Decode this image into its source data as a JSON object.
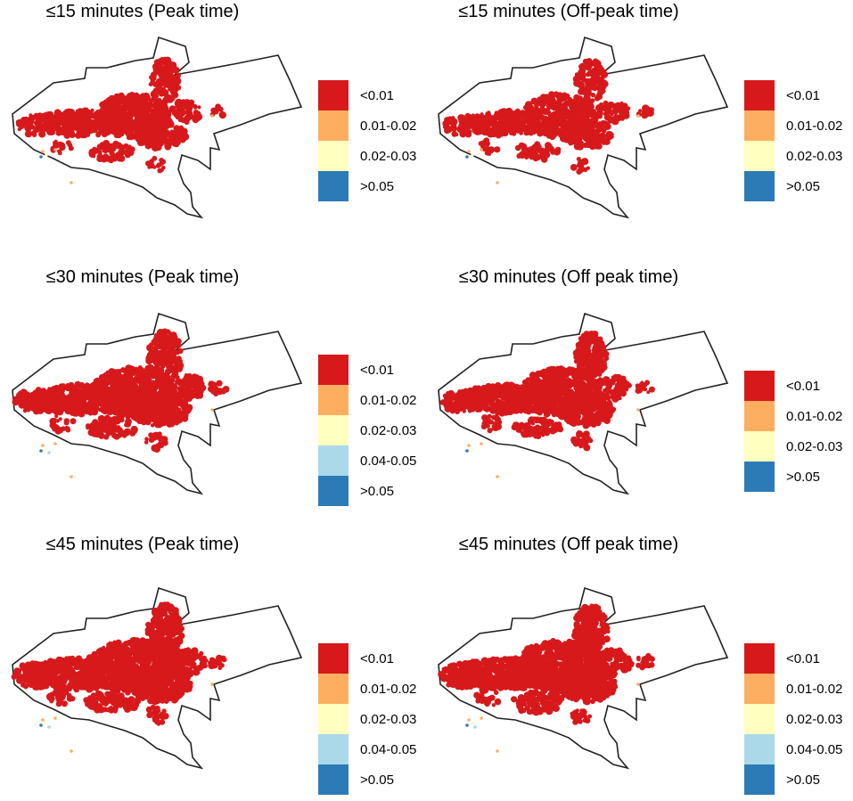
{
  "colors": {
    "<0.01": "#d7191c",
    "0.01-0.02": "#fdae61",
    "0.02-0.03": "#ffffbf",
    "0.04-0.05": "#abd9e9",
    ">0.05": "#2c7bb6"
  },
  "panels": [
    {
      "title": "≤15 minutes (Peak time)",
      "density": 0.55,
      "legend": [
        "<0.01",
        "0.01-0.02",
        "0.02-0.03",
        ">0.05"
      ]
    },
    {
      "title": "≤15 minutes (Off-peak time)",
      "density": 0.55,
      "legend": [
        "<0.01",
        "0.01-0.02",
        "0.02-0.03",
        ">0.05"
      ]
    },
    {
      "title": "≤30 minutes (Peak time)",
      "density": 0.85,
      "legend": [
        "<0.01",
        "0.01-0.02",
        "0.02-0.03",
        "0.04-0.05",
        ">0.05"
      ]
    },
    {
      "title": "≤30 minutes (Off peak time)",
      "density": 0.75,
      "legend": [
        "<0.01",
        "0.01-0.02",
        "0.02-0.03",
        ">0.05"
      ]
    },
    {
      "title": "≤45 minutes (Peak time)",
      "density": 1.0,
      "legend": [
        "<0.01",
        "0.01-0.02",
        "0.02-0.03",
        "0.04-0.05",
        ">0.05"
      ]
    },
    {
      "title": "≤45 minutes (Off peak time)",
      "density": 0.95,
      "legend": [
        "<0.01",
        "0.01-0.02",
        "0.02-0.03",
        "0.04-0.05",
        ">0.05"
      ]
    }
  ]
}
